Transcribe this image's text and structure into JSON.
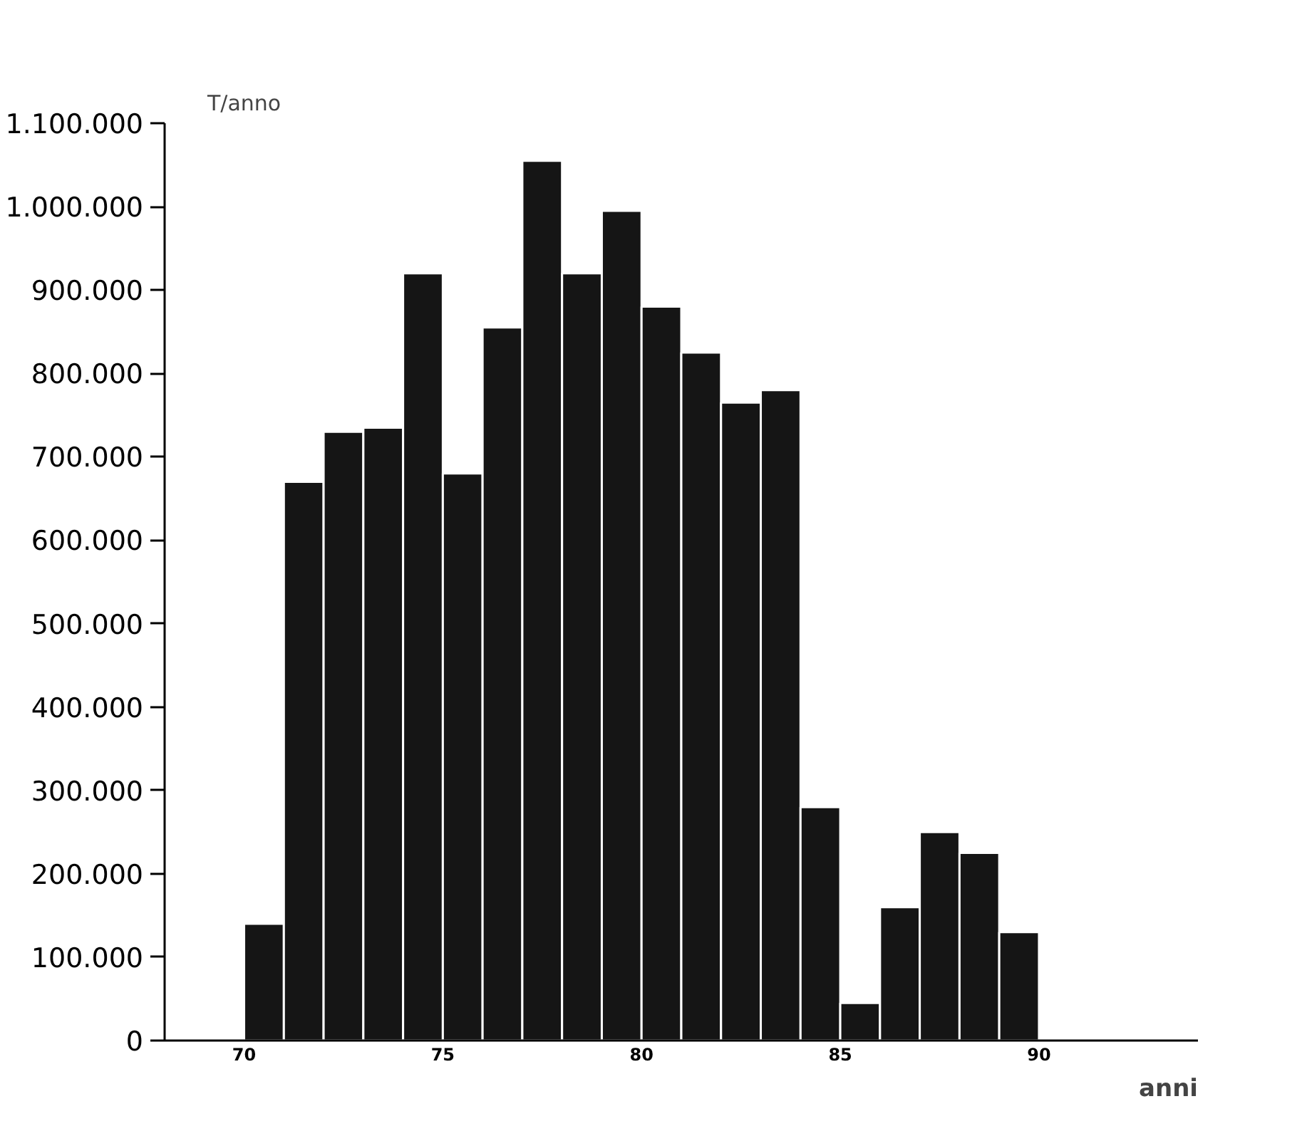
{
  "chart_data": {
    "type": "histogram",
    "ylabel": "T/anno",
    "xlabel": "anni",
    "bins": [
      70,
      71,
      72,
      73,
      74,
      75,
      76,
      77,
      78,
      79,
      80,
      81,
      82,
      83,
      84,
      85,
      86,
      87,
      88,
      89,
      90
    ],
    "values": [
      140000,
      670000,
      730000,
      735000,
      920000,
      680000,
      855000,
      1055000,
      920000,
      995000,
      880000,
      825000,
      765000,
      780000,
      280000,
      45000,
      160000,
      250000,
      225000,
      130000
    ],
    "color": "#151515",
    "xlim": [
      68,
      94
    ],
    "xticks": [
      70,
      75,
      80,
      85,
      90
    ],
    "ylim": [
      0,
      1100000
    ],
    "yticks": [
      {
        "value": 0,
        "label": "0"
      },
      {
        "value": 100000,
        "label": "100.000"
      },
      {
        "value": 200000,
        "label": "200.000"
      },
      {
        "value": 300000,
        "label": "300.000"
      },
      {
        "value": 400000,
        "label": "400.000"
      },
      {
        "value": 500000,
        "label": "500.000"
      },
      {
        "value": 600000,
        "label": "600.000"
      },
      {
        "value": 700000,
        "label": "700.000"
      },
      {
        "value": 800000,
        "label": "800.000"
      },
      {
        "value": 900000,
        "label": "900.000"
      },
      {
        "value": 1000000,
        "label": "1.000.000"
      },
      {
        "value": 1100000,
        "label": "1.100.000"
      }
    ],
    "grid": false
  }
}
